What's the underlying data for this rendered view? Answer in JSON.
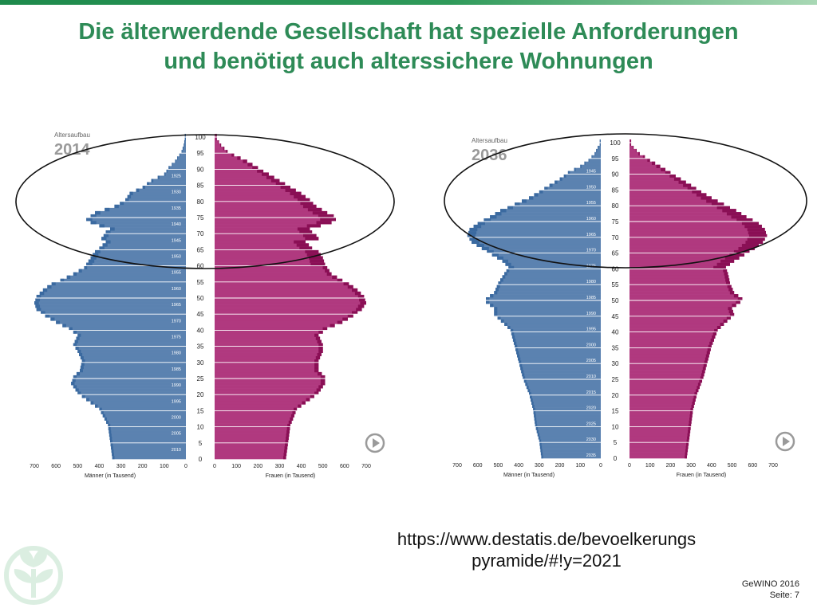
{
  "slide": {
    "title_line1": "Die älterwerdende Gesellschaft hat spezielle Anforderungen",
    "title_line2": "und benötigt auch alterssichere Wohnungen",
    "url_line1": "https://www.destatis.de/bevoelkerungs",
    "url_line2": "pyramide/#!y=2021",
    "footer_line1": "GeWINO 2016",
    "footer_line2": "Seite: 7"
  },
  "colors": {
    "male": "#5b82b0",
    "male_dark": "#3b6aa0",
    "female": "#b0397f",
    "female_dark": "#8a0f55",
    "accent": "#2e8b57",
    "play": "#9a9a9a"
  },
  "chart_data": [
    {
      "type": "bar",
      "subtitle": "Altersaufbau",
      "year": "2014",
      "xlabel_left": "Männer (in Tausend)",
      "xlabel_right": "Frauen (in Tausend)",
      "xlim": [
        0,
        700
      ],
      "xticks": [
        700,
        600,
        500,
        400,
        300,
        200,
        100,
        0
      ],
      "yticks": [
        100,
        95,
        90,
        85,
        80,
        75,
        70,
        65,
        60,
        55,
        50,
        45,
        40,
        35,
        30,
        25,
        20,
        15,
        10,
        5,
        0
      ],
      "birth_year_labels": [
        {
          "age": 88,
          "label": "1925"
        },
        {
          "age": 83,
          "label": "1930"
        },
        {
          "age": 78,
          "label": "1935"
        },
        {
          "age": 73,
          "label": "1940"
        },
        {
          "age": 68,
          "label": "1945"
        },
        {
          "age": 63,
          "label": "1950"
        },
        {
          "age": 58,
          "label": "1955"
        },
        {
          "age": 53,
          "label": "1960"
        },
        {
          "age": 48,
          "label": "1965"
        },
        {
          "age": 43,
          "label": "1970"
        },
        {
          "age": 38,
          "label": "1975"
        },
        {
          "age": 33,
          "label": "1980"
        },
        {
          "age": 28,
          "label": "1985"
        },
        {
          "age": 23,
          "label": "1990"
        },
        {
          "age": 18,
          "label": "1995"
        },
        {
          "age": 13,
          "label": "2000"
        },
        {
          "age": 8,
          "label": "2005"
        },
        {
          "age": 3,
          "label": "2010"
        }
      ],
      "ages": [
        0,
        5,
        10,
        15,
        18,
        20,
        23,
        25,
        27,
        30,
        33,
        35,
        38,
        40,
        42,
        44,
        46,
        48,
        50,
        52,
        54,
        55,
        57,
        59,
        60,
        62,
        64,
        65,
        67,
        68,
        69,
        70,
        71,
        72,
        73,
        74,
        75,
        76,
        78,
        80,
        82,
        84,
        86,
        88,
        90,
        92,
        94,
        95,
        97,
        99
      ],
      "series": [
        {
          "name": "Männer",
          "values": [
            340,
            350,
            360,
            400,
            460,
            500,
            530,
            520,
            490,
            480,
            500,
            520,
            500,
            540,
            600,
            650,
            690,
            700,
            690,
            660,
            620,
            580,
            520,
            470,
            460,
            440,
            420,
            400,
            370,
            390,
            380,
            370,
            350,
            400,
            440,
            460,
            440,
            420,
            330,
            280,
            260,
            200,
            160,
            100,
            80,
            50,
            30,
            20,
            10,
            5
          ]
        },
        {
          "name": "Frauen",
          "values": [
            330,
            340,
            350,
            380,
            440,
            480,
            510,
            510,
            480,
            480,
            500,
            500,
            480,
            520,
            590,
            640,
            680,
            700,
            690,
            660,
            620,
            590,
            540,
            520,
            510,
            500,
            480,
            450,
            420,
            480,
            470,
            450,
            440,
            490,
            540,
            560,
            550,
            520,
            470,
            440,
            400,
            350,
            300,
            250,
            200,
            150,
            90,
            60,
            30,
            10
          ]
        }
      ]
    },
    {
      "type": "bar",
      "subtitle": "Altersaufbau",
      "year": "2036",
      "xlabel_left": "Männer (in Tausend)",
      "xlabel_right": "Frauen (in Tausend)",
      "xlim": [
        0,
        700
      ],
      "xticks": [
        700,
        600,
        500,
        400,
        300,
        200,
        100,
        0
      ],
      "yticks": [
        100,
        95,
        90,
        85,
        80,
        75,
        70,
        65,
        60,
        55,
        50,
        45,
        40,
        35,
        30,
        25,
        20,
        15,
        10,
        5,
        0
      ],
      "birth_year_labels": [
        {
          "age": 91,
          "label": "1945"
        },
        {
          "age": 86,
          "label": "1950"
        },
        {
          "age": 81,
          "label": "1955"
        },
        {
          "age": 76,
          "label": "1960"
        },
        {
          "age": 71,
          "label": "1965"
        },
        {
          "age": 66,
          "label": "1970"
        },
        {
          "age": 61,
          "label": "1975"
        },
        {
          "age": 56,
          "label": "1980"
        },
        {
          "age": 51,
          "label": "1985"
        },
        {
          "age": 46,
          "label": "1990"
        },
        {
          "age": 41,
          "label": "1995"
        },
        {
          "age": 36,
          "label": "2000"
        },
        {
          "age": 31,
          "label": "2005"
        },
        {
          "age": 26,
          "label": "2010"
        },
        {
          "age": 21,
          "label": "2015"
        },
        {
          "age": 16,
          "label": "2020"
        },
        {
          "age": 11,
          "label": "2025"
        },
        {
          "age": 6,
          "label": "2030"
        },
        {
          "age": 1,
          "label": "2035"
        }
      ],
      "ages": [
        0,
        5,
        10,
        15,
        20,
        25,
        30,
        35,
        40,
        42,
        45,
        47,
        49,
        50,
        52,
        55,
        58,
        60,
        62,
        64,
        66,
        68,
        70,
        72,
        74,
        76,
        78,
        80,
        82,
        84,
        86,
        88,
        90,
        92,
        94,
        96,
        98,
        99
      ],
      "series": [
        {
          "name": "Männer",
          "values": [
            290,
            300,
            320,
            330,
            350,
            380,
            400,
            420,
            440,
            470,
            520,
            520,
            560,
            560,
            520,
            500,
            470,
            450,
            480,
            530,
            580,
            630,
            650,
            640,
            600,
            540,
            490,
            420,
            350,
            300,
            250,
            200,
            160,
            100,
            60,
            30,
            15,
            5
          ]
        },
        {
          "name": "Frauen",
          "values": [
            280,
            290,
            300,
            310,
            330,
            360,
            380,
            400,
            430,
            460,
            510,
            500,
            540,
            550,
            510,
            490,
            480,
            470,
            510,
            560,
            610,
            650,
            670,
            660,
            630,
            570,
            520,
            460,
            400,
            350,
            300,
            250,
            200,
            150,
            100,
            50,
            20,
            8
          ]
        }
      ]
    }
  ]
}
